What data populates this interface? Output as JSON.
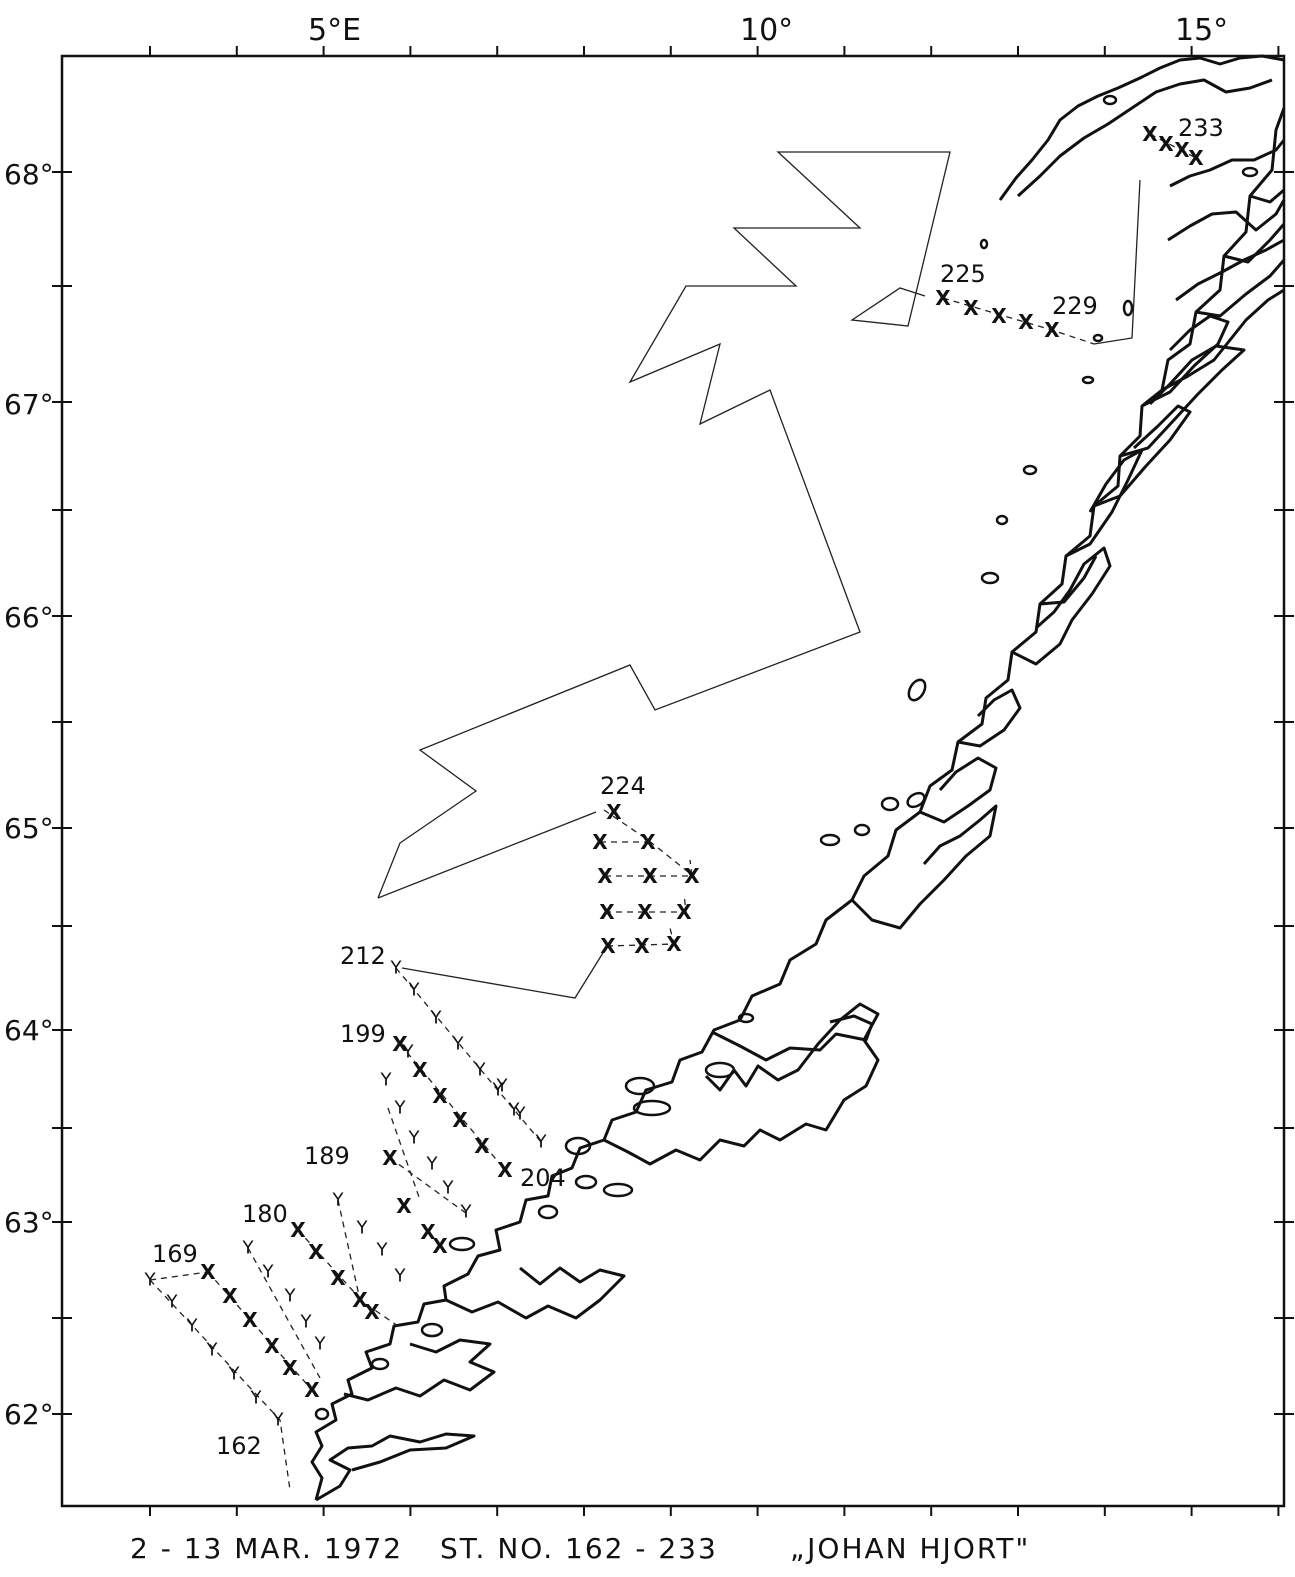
{
  "map": {
    "longitude_labels": [
      "5°E",
      "10°",
      "15°"
    ],
    "latitude_labels": [
      "68°",
      "67°",
      "66°",
      "65°",
      "64°",
      "63°",
      "62°"
    ],
    "station_labels": [
      "233",
      "225",
      "229",
      "224",
      "212",
      "199",
      "204",
      "189",
      "180",
      "169",
      "162"
    ]
  },
  "caption": {
    "dates": "2 - 13 MAR. 1972",
    "stations": "ST. NO. 162 - 233",
    "vessel": "„JOHAN HJORT\""
  }
}
